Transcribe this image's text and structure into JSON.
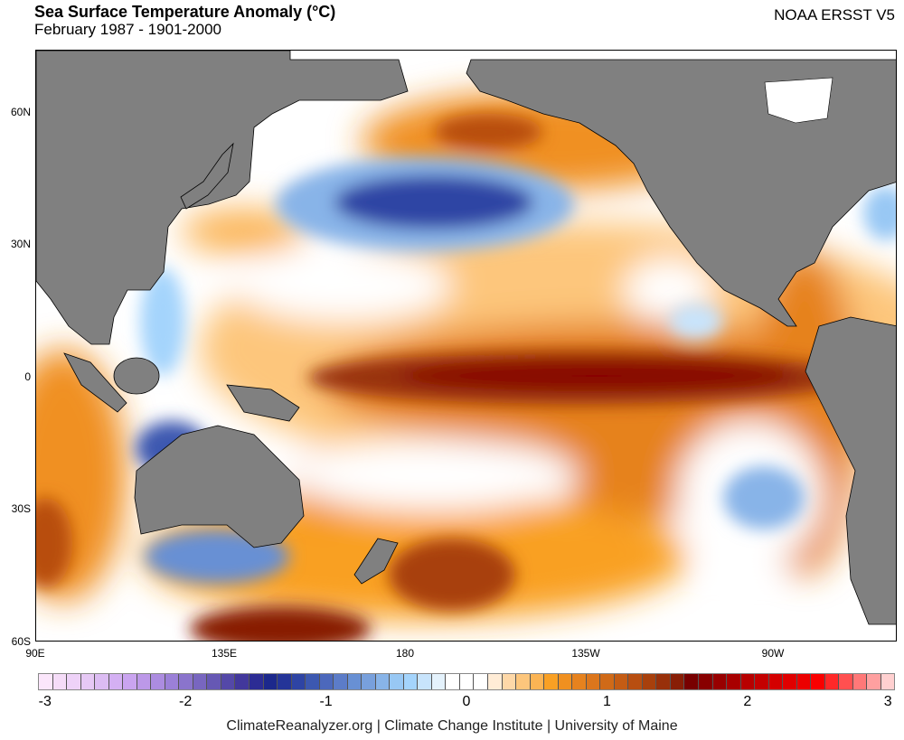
{
  "header": {
    "title": "Sea Surface Temperature Anomaly (°C)",
    "subtitle": "February 1987 - 1901-2000",
    "source": "NOAA ERSST V5"
  },
  "map": {
    "lat_labels": [
      "60N",
      "30N",
      "0",
      "30S",
      "60S"
    ],
    "lon_labels": [
      "90E",
      "135E",
      "180",
      "135W",
      "90W"
    ],
    "land_color": "#808080"
  },
  "colorbar": {
    "min": -3,
    "max": 3,
    "step": 0.1,
    "tick_labels": [
      "-3",
      "-2",
      "-1",
      "0",
      "1",
      "2",
      "3"
    ],
    "colors": [
      "#fbe6fb",
      "#f5dcf8",
      "#eed2f8",
      "#e6c8f5",
      "#dcbcf3",
      "#d4b0f3",
      "#caa4f0",
      "#bc98e8",
      "#ac8ce0",
      "#9b80d8",
      "#8a74cc",
      "#7866c0",
      "#6658b4",
      "#5448a8",
      "#42389c",
      "#2c2c94",
      "#1c288c",
      "#243498",
      "#2e44a4",
      "#3c58b0",
      "#4c68bc",
      "#5c7cc8",
      "#6890d4",
      "#78a0dc",
      "#88b4e8",
      "#98c8f4",
      "#a4d4fc",
      "#c8e4fc",
      "#e4f2fc",
      "#ffffff",
      "#ffffff",
      "#ffffff",
      "#ffecd6",
      "#fed8a8",
      "#fdc67c",
      "#fbb454",
      "#f9a024",
      "#f09020",
      "#e6821e",
      "#dc761c",
      "#d06a18",
      "#c45c14",
      "#b84e10",
      "#a8400c",
      "#98300a",
      "#881e06",
      "#780000",
      "#880000",
      "#980000",
      "#a80000",
      "#b80000",
      "#c40000",
      "#d40000",
      "#e00000",
      "#ec0000",
      "#fa0000",
      "#ff2828",
      "#ff5050",
      "#ff7878",
      "#ffa0a0",
      "#ffd0d0"
    ]
  },
  "footer": "ClimateReanalyzer.org | Climate Change Institute | University of Maine"
}
